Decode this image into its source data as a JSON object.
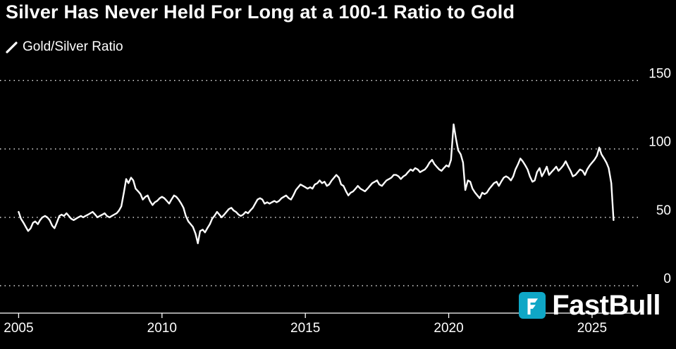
{
  "chart": {
    "title": "Silver Has Never Held For Long at a 100-1 Ratio to Gold",
    "legend": "Gold/Silver Ratio"
  },
  "watermark": {
    "label": "FastBull",
    "accent_color": "#0fa7c6"
  },
  "icons": {
    "legend_marker": "white-diagonal-line",
    "watermark_logo": "fastbull-teal-square"
  },
  "colors": {
    "background": "#000000",
    "foreground": "#ffffff",
    "line": "#ffffff",
    "grid": "#ffffff"
  },
  "chart_data": {
    "type": "line",
    "title": "Silver Has Never Held For Long at a 100-1 Ratio to Gold",
    "xlabel": "",
    "ylabel": "",
    "legend_entries": [
      "Gold/Silver Ratio"
    ],
    "legend_position": "top-left",
    "grid": "dotted-horizontal",
    "x_ticks": [
      2005,
      2010,
      2015,
      2020,
      2025
    ],
    "y_ticks": [
      0,
      50,
      100,
      150
    ],
    "x_range": [
      2004.35,
      2026.6
    ],
    "y_range": [
      -20,
      160
    ],
    "series": [
      {
        "name": "Gold/Silver Ratio",
        "color": "#ffffff",
        "points": [
          [
            2005.0,
            54
          ],
          [
            2005.08,
            49
          ],
          [
            2005.17,
            46
          ],
          [
            2005.25,
            43
          ],
          [
            2005.33,
            40
          ],
          [
            2005.42,
            42
          ],
          [
            2005.5,
            46
          ],
          [
            2005.58,
            47
          ],
          [
            2005.67,
            45
          ],
          [
            2005.75,
            48
          ],
          [
            2005.83,
            50
          ],
          [
            2005.92,
            51
          ],
          [
            2006.0,
            50
          ],
          [
            2006.08,
            48
          ],
          [
            2006.17,
            44
          ],
          [
            2006.25,
            42
          ],
          [
            2006.33,
            46
          ],
          [
            2006.42,
            51
          ],
          [
            2006.5,
            52
          ],
          [
            2006.58,
            51
          ],
          [
            2006.67,
            53
          ],
          [
            2006.75,
            51
          ],
          [
            2006.83,
            49
          ],
          [
            2006.92,
            48
          ],
          [
            2007.0,
            49
          ],
          [
            2007.08,
            50
          ],
          [
            2007.17,
            51
          ],
          [
            2007.25,
            50
          ],
          [
            2007.33,
            51
          ],
          [
            2007.42,
            52
          ],
          [
            2007.5,
            53
          ],
          [
            2007.58,
            54
          ],
          [
            2007.67,
            52
          ],
          [
            2007.75,
            50
          ],
          [
            2007.83,
            51
          ],
          [
            2007.92,
            52
          ],
          [
            2008.0,
            53
          ],
          [
            2008.08,
            51
          ],
          [
            2008.17,
            50
          ],
          [
            2008.25,
            51
          ],
          [
            2008.33,
            52
          ],
          [
            2008.42,
            53
          ],
          [
            2008.5,
            55
          ],
          [
            2008.58,
            58
          ],
          [
            2008.67,
            68
          ],
          [
            2008.75,
            78
          ],
          [
            2008.83,
            75
          ],
          [
            2008.92,
            79
          ],
          [
            2009.0,
            77
          ],
          [
            2009.08,
            71
          ],
          [
            2009.17,
            69
          ],
          [
            2009.25,
            67
          ],
          [
            2009.33,
            63
          ],
          [
            2009.42,
            65
          ],
          [
            2009.5,
            66
          ],
          [
            2009.58,
            62
          ],
          [
            2009.67,
            59
          ],
          [
            2009.75,
            61
          ],
          [
            2009.83,
            62
          ],
          [
            2009.92,
            64
          ],
          [
            2010.0,
            65
          ],
          [
            2010.08,
            64
          ],
          [
            2010.17,
            62
          ],
          [
            2010.25,
            60
          ],
          [
            2010.33,
            63
          ],
          [
            2010.42,
            66
          ],
          [
            2010.5,
            65
          ],
          [
            2010.58,
            63
          ],
          [
            2010.67,
            60
          ],
          [
            2010.75,
            57
          ],
          [
            2010.83,
            51
          ],
          [
            2010.92,
            47
          ],
          [
            2011.0,
            45
          ],
          [
            2011.08,
            43
          ],
          [
            2011.17,
            38
          ],
          [
            2011.25,
            31
          ],
          [
            2011.33,
            40
          ],
          [
            2011.42,
            41
          ],
          [
            2011.5,
            39
          ],
          [
            2011.58,
            42
          ],
          [
            2011.67,
            45
          ],
          [
            2011.75,
            49
          ],
          [
            2011.83,
            51
          ],
          [
            2011.92,
            54
          ],
          [
            2012.0,
            52
          ],
          [
            2012.08,
            50
          ],
          [
            2012.17,
            52
          ],
          [
            2012.25,
            54
          ],
          [
            2012.33,
            56
          ],
          [
            2012.42,
            57
          ],
          [
            2012.5,
            55
          ],
          [
            2012.58,
            54
          ],
          [
            2012.67,
            52
          ],
          [
            2012.75,
            51
          ],
          [
            2012.83,
            52
          ],
          [
            2012.92,
            54
          ],
          [
            2013.0,
            53
          ],
          [
            2013.08,
            55
          ],
          [
            2013.17,
            57
          ],
          [
            2013.25,
            60
          ],
          [
            2013.33,
            63
          ],
          [
            2013.42,
            64
          ],
          [
            2013.5,
            63
          ],
          [
            2013.58,
            60
          ],
          [
            2013.67,
            61
          ],
          [
            2013.75,
            60
          ],
          [
            2013.83,
            61
          ],
          [
            2013.92,
            62
          ],
          [
            2014.0,
            61
          ],
          [
            2014.08,
            62
          ],
          [
            2014.17,
            64
          ],
          [
            2014.25,
            65
          ],
          [
            2014.33,
            66
          ],
          [
            2014.42,
            64
          ],
          [
            2014.5,
            63
          ],
          [
            2014.58,
            66
          ],
          [
            2014.67,
            70
          ],
          [
            2014.75,
            72
          ],
          [
            2014.83,
            74
          ],
          [
            2014.92,
            73
          ],
          [
            2015.0,
            72
          ],
          [
            2015.08,
            71
          ],
          [
            2015.17,
            72
          ],
          [
            2015.25,
            71
          ],
          [
            2015.33,
            74
          ],
          [
            2015.42,
            75
          ],
          [
            2015.5,
            77
          ],
          [
            2015.58,
            75
          ],
          [
            2015.67,
            76
          ],
          [
            2015.75,
            73
          ],
          [
            2015.83,
            74
          ],
          [
            2015.92,
            77
          ],
          [
            2016.0,
            79
          ],
          [
            2016.08,
            81
          ],
          [
            2016.17,
            79
          ],
          [
            2016.25,
            74
          ],
          [
            2016.33,
            73
          ],
          [
            2016.42,
            69
          ],
          [
            2016.5,
            66
          ],
          [
            2016.58,
            68
          ],
          [
            2016.67,
            69
          ],
          [
            2016.75,
            71
          ],
          [
            2016.83,
            73
          ],
          [
            2016.92,
            71
          ],
          [
            2017.0,
            70
          ],
          [
            2017.08,
            69
          ],
          [
            2017.17,
            71
          ],
          [
            2017.25,
            73
          ],
          [
            2017.33,
            75
          ],
          [
            2017.42,
            76
          ],
          [
            2017.5,
            77
          ],
          [
            2017.58,
            74
          ],
          [
            2017.67,
            73
          ],
          [
            2017.75,
            75
          ],
          [
            2017.83,
            77
          ],
          [
            2017.92,
            78
          ],
          [
            2018.0,
            79
          ],
          [
            2018.08,
            81
          ],
          [
            2018.17,
            81
          ],
          [
            2018.25,
            80
          ],
          [
            2018.33,
            78
          ],
          [
            2018.42,
            80
          ],
          [
            2018.5,
            81
          ],
          [
            2018.58,
            83
          ],
          [
            2018.67,
            85
          ],
          [
            2018.75,
            84
          ],
          [
            2018.83,
            86
          ],
          [
            2018.92,
            85
          ],
          [
            2019.0,
            83
          ],
          [
            2019.08,
            84
          ],
          [
            2019.17,
            85
          ],
          [
            2019.25,
            87
          ],
          [
            2019.33,
            90
          ],
          [
            2019.42,
            92
          ],
          [
            2019.5,
            89
          ],
          [
            2019.58,
            87
          ],
          [
            2019.67,
            85
          ],
          [
            2019.75,
            84
          ],
          [
            2019.83,
            86
          ],
          [
            2019.92,
            88
          ],
          [
            2020.0,
            87
          ],
          [
            2020.08,
            92
          ],
          [
            2020.17,
            118
          ],
          [
            2020.25,
            108
          ],
          [
            2020.33,
            99
          ],
          [
            2020.42,
            96
          ],
          [
            2020.5,
            90
          ],
          [
            2020.58,
            70
          ],
          [
            2020.67,
            77
          ],
          [
            2020.75,
            76
          ],
          [
            2020.83,
            71
          ],
          [
            2020.92,
            68
          ],
          [
            2021.0,
            66
          ],
          [
            2021.08,
            64
          ],
          [
            2021.17,
            68
          ],
          [
            2021.25,
            67
          ],
          [
            2021.33,
            68
          ],
          [
            2021.42,
            71
          ],
          [
            2021.5,
            73
          ],
          [
            2021.58,
            75
          ],
          [
            2021.67,
            76
          ],
          [
            2021.75,
            73
          ],
          [
            2021.83,
            76
          ],
          [
            2021.92,
            79
          ],
          [
            2022.0,
            80
          ],
          [
            2022.08,
            79
          ],
          [
            2022.17,
            77
          ],
          [
            2022.25,
            80
          ],
          [
            2022.33,
            85
          ],
          [
            2022.42,
            89
          ],
          [
            2022.5,
            93
          ],
          [
            2022.58,
            91
          ],
          [
            2022.67,
            88
          ],
          [
            2022.75,
            85
          ],
          [
            2022.83,
            80
          ],
          [
            2022.92,
            76
          ],
          [
            2023.0,
            77
          ],
          [
            2023.08,
            83
          ],
          [
            2023.17,
            86
          ],
          [
            2023.25,
            80
          ],
          [
            2023.33,
            83
          ],
          [
            2023.42,
            87
          ],
          [
            2023.5,
            81
          ],
          [
            2023.58,
            83
          ],
          [
            2023.67,
            85
          ],
          [
            2023.75,
            87
          ],
          [
            2023.83,
            84
          ],
          [
            2023.92,
            86
          ],
          [
            2024.0,
            88
          ],
          [
            2024.08,
            91
          ],
          [
            2024.17,
            87
          ],
          [
            2024.25,
            84
          ],
          [
            2024.33,
            80
          ],
          [
            2024.42,
            81
          ],
          [
            2024.5,
            83
          ],
          [
            2024.58,
            85
          ],
          [
            2024.67,
            84
          ],
          [
            2024.75,
            81
          ],
          [
            2024.83,
            85
          ],
          [
            2024.92,
            88
          ],
          [
            2025.0,
            90
          ],
          [
            2025.08,
            92
          ],
          [
            2025.17,
            95
          ],
          [
            2025.25,
            101
          ],
          [
            2025.33,
            96
          ],
          [
            2025.42,
            93
          ],
          [
            2025.5,
            90
          ],
          [
            2025.58,
            86
          ],
          [
            2025.67,
            75
          ],
          [
            2025.75,
            48
          ]
        ]
      }
    ]
  }
}
